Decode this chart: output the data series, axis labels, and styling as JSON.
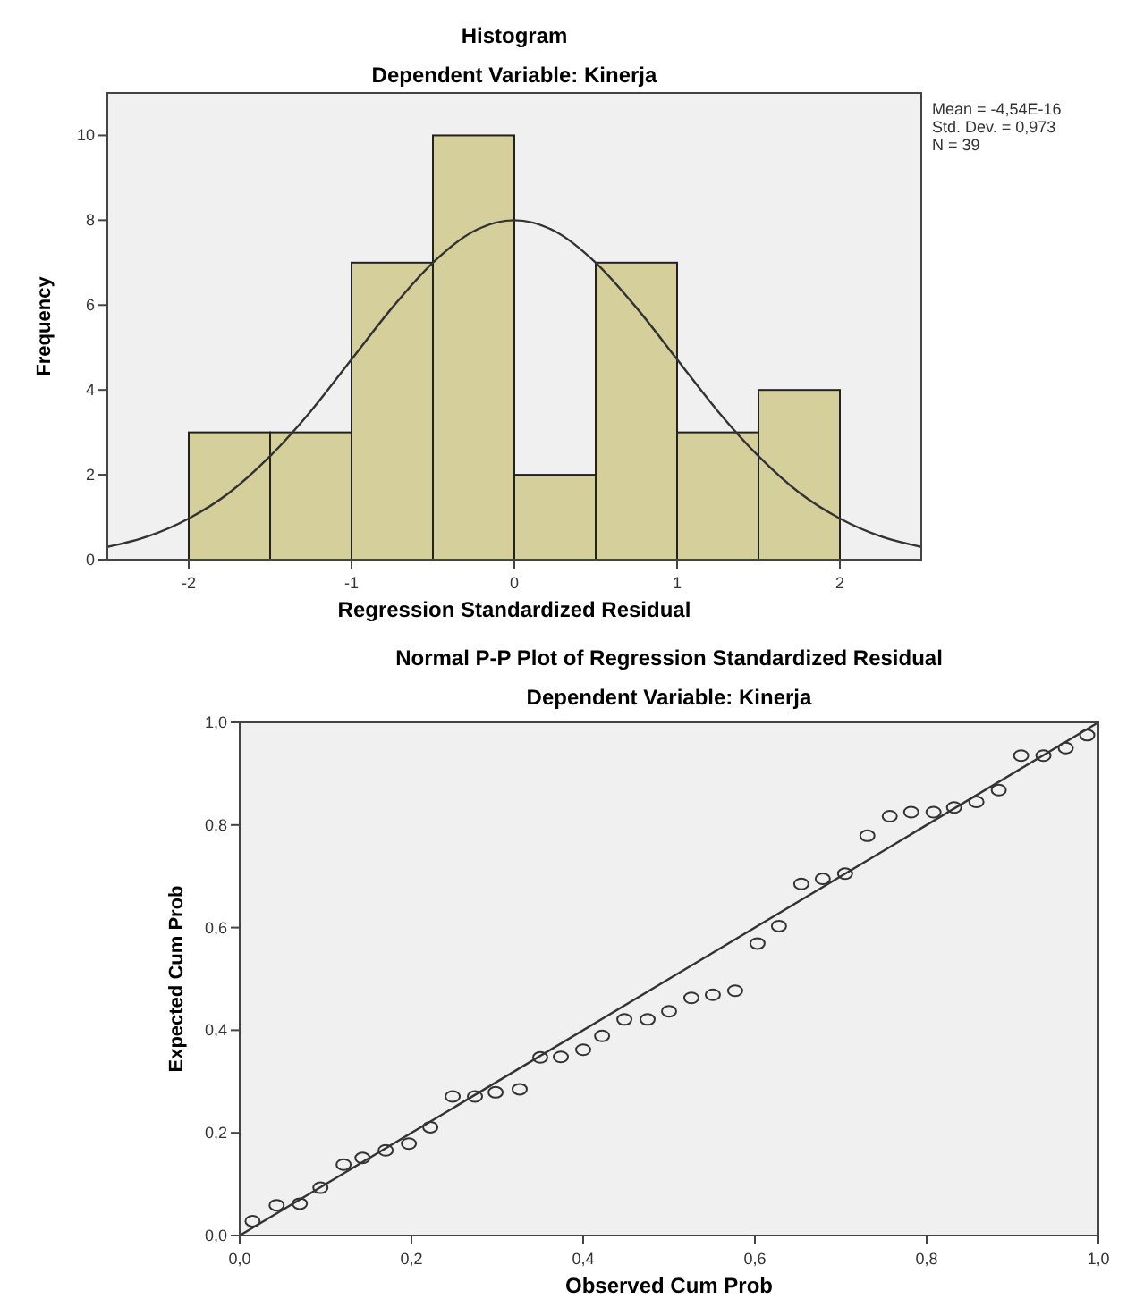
{
  "chart_data": [
    {
      "type": "histogram",
      "title": "Histogram",
      "subtitle": "Dependent Variable: Kinerja",
      "xlabel": "Regression Standardized Residual",
      "ylabel": "Frequency",
      "annotations": [
        "Mean = -4,54E-16",
        "Std. Dev. = 0,973",
        "N = 39"
      ],
      "xlim": [
        -2.5,
        2.5
      ],
      "ylim": [
        0,
        11
      ],
      "xticks": [
        -2,
        -1,
        0,
        1,
        2
      ],
      "yticks": [
        0,
        2,
        4,
        6,
        8,
        10
      ],
      "grid": false,
      "series": [
        {
          "bins": [
            -2,
            -1.5,
            -1,
            -0.5,
            0,
            0.5,
            1,
            1.5,
            2
          ],
          "values": [
            3,
            3,
            7,
            10,
            2,
            7,
            3,
            4
          ],
          "color": "#d5cf9b"
        },
        {
          "type": "line",
          "x": [
            -2.5,
            -2.25,
            -2,
            -1.75,
            -1.5,
            -1.25,
            -1,
            -0.75,
            -0.5,
            -0.25,
            0,
            0.25,
            0.5,
            0.75,
            1,
            1.25,
            1.5,
            1.75,
            2,
            2.25,
            2.5
          ],
          "values": [
            0.3,
            0.55,
            0.97,
            1.58,
            2.44,
            3.5,
            4.72,
            5.94,
            7.0,
            7.74,
            8.0,
            7.74,
            7.0,
            5.94,
            4.72,
            3.5,
            2.44,
            1.58,
            0.97,
            0.55,
            0.3
          ],
          "color": "#333333"
        }
      ]
    },
    {
      "type": "scatter",
      "title": "Normal P-P Plot of Regression Standardized Residual",
      "subtitle": "Dependent Variable: Kinerja",
      "xlabel": "Observed Cum Prob",
      "ylabel": "Expected Cum Prob",
      "xlim": [
        0,
        1
      ],
      "ylim": [
        0,
        1
      ],
      "xticks": [
        {
          "value": 0,
          "label": "0,0"
        },
        {
          "value": 0.2,
          "label": "0,2"
        },
        {
          "value": 0.4,
          "label": "0,4"
        },
        {
          "value": 0.6,
          "label": "0,6"
        },
        {
          "value": 0.8,
          "label": "0,8"
        },
        {
          "value": 1,
          "label": "1,0"
        }
      ],
      "yticks": [
        {
          "value": 0,
          "label": "0,0"
        },
        {
          "value": 0.2,
          "label": "0,2"
        },
        {
          "value": 0.4,
          "label": "0,4"
        },
        {
          "value": 0.6,
          "label": "0,6"
        },
        {
          "value": 0.8,
          "label": "0,8"
        },
        {
          "value": 1,
          "label": "1,0"
        }
      ],
      "grid": false,
      "series": [
        {
          "marker": "circle",
          "color": "#333333",
          "x": [
            0.015,
            0.043,
            0.07,
            0.094,
            0.121,
            0.143,
            0.17,
            0.197,
            0.222,
            0.248,
            0.274,
            0.298,
            0.326,
            0.35,
            0.374,
            0.4,
            0.422,
            0.448,
            0.475,
            0.5,
            0.526,
            0.551,
            0.577,
            0.603,
            0.628,
            0.654,
            0.679,
            0.705,
            0.731,
            0.757,
            0.782,
            0.808,
            0.832,
            0.858,
            0.884,
            0.91,
            0.936,
            0.962,
            0.987
          ],
          "values": [
            0.028,
            0.059,
            0.062,
            0.093,
            0.138,
            0.151,
            0.166,
            0.179,
            0.211,
            0.271,
            0.271,
            0.279,
            0.285,
            0.347,
            0.348,
            0.362,
            0.389,
            0.421,
            0.421,
            0.437,
            0.463,
            0.469,
            0.477,
            0.569,
            0.603,
            0.685,
            0.695,
            0.705,
            0.779,
            0.817,
            0.825,
            0.825,
            0.834,
            0.845,
            0.868,
            0.935,
            0.935,
            0.95,
            0.975
          ]
        },
        {
          "type": "line",
          "color": "#333333",
          "x": [
            0,
            1
          ],
          "values": [
            0,
            1
          ]
        }
      ]
    }
  ]
}
